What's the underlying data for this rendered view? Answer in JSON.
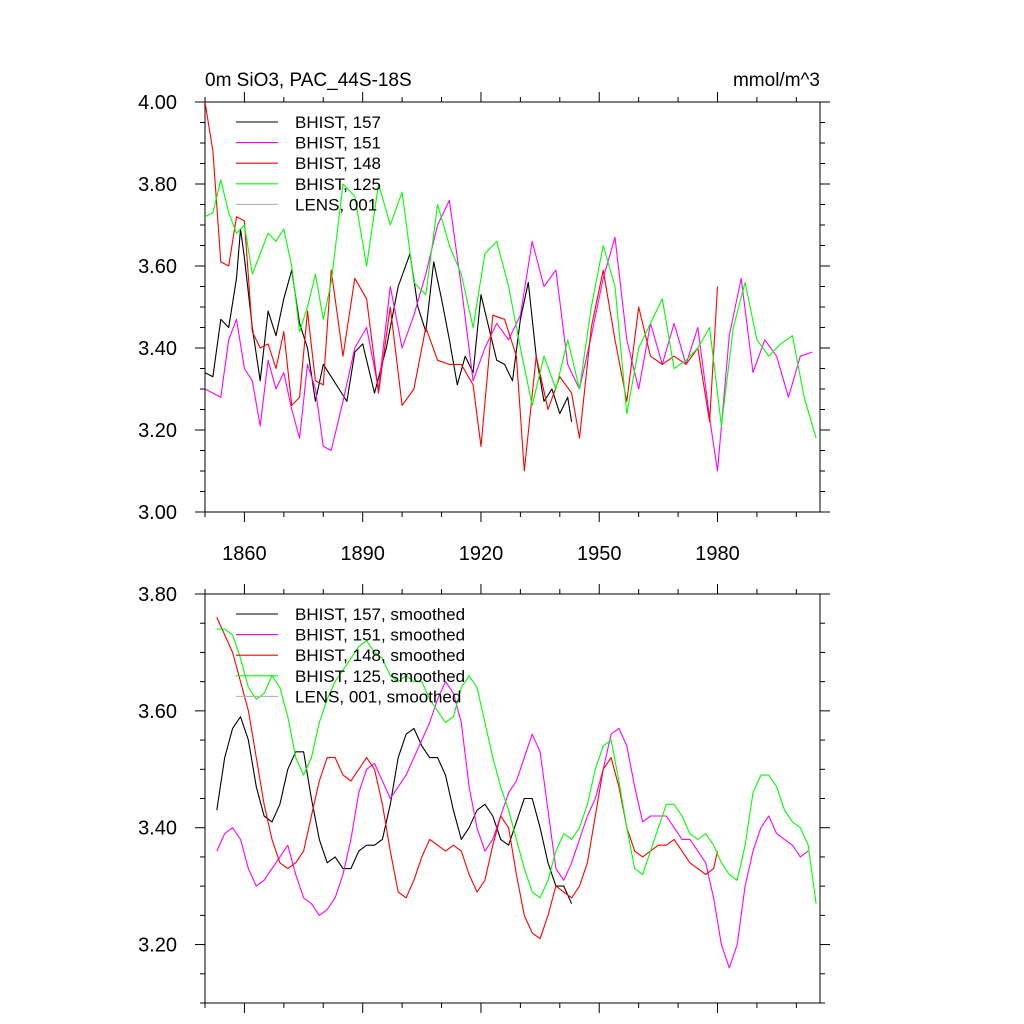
{
  "figure": {
    "title_left": "0m SiO3, PAC_44S-18S",
    "title_right": "mmol/m^3"
  },
  "chart_data": [
    {
      "type": "line",
      "xlim": [
        1850,
        2006
      ],
      "ylim": [
        3.0,
        4.0
      ],
      "x_ticks": [
        1860,
        1890,
        1920,
        1950,
        1980
      ],
      "x_tick_labels": [
        "1860",
        "1890",
        "1920",
        "1950",
        "1980"
      ],
      "y_ticks": [
        3.0,
        3.2,
        3.4,
        3.6,
        3.8,
        4.0
      ],
      "y_tick_labels": [
        "3.00",
        "3.20",
        "3.40",
        "3.60",
        "3.80",
        "4.00"
      ],
      "grid": false,
      "legend_position": "top-left",
      "series": [
        {
          "name": "BHIST, 157",
          "color": "#000000",
          "x": [
            1850,
            1852,
            1854,
            1856,
            1858,
            1859,
            1860,
            1862,
            1864,
            1866,
            1868,
            1870,
            1872,
            1874,
            1876,
            1878,
            1880,
            1882,
            1884,
            1886,
            1888,
            1890,
            1893,
            1896,
            1899,
            1902,
            1904,
            1906,
            1908,
            1910,
            1912,
            1914,
            1916,
            1918,
            1920,
            1922,
            1924,
            1926,
            1928,
            1930,
            1932,
            1934,
            1936,
            1938,
            1940,
            1942,
            1943
          ],
          "y": [
            3.34,
            3.33,
            3.47,
            3.45,
            3.57,
            3.69,
            3.62,
            3.45,
            3.32,
            3.49,
            3.43,
            3.52,
            3.59,
            3.46,
            3.4,
            3.27,
            3.36,
            3.33,
            3.3,
            3.27,
            3.39,
            3.41,
            3.29,
            3.4,
            3.55,
            3.63,
            3.5,
            3.44,
            3.61,
            3.52,
            3.42,
            3.31,
            3.38,
            3.34,
            3.53,
            3.45,
            3.37,
            3.36,
            3.32,
            3.47,
            3.56,
            3.38,
            3.27,
            3.3,
            3.24,
            3.28,
            3.22
          ]
        },
        {
          "name": "BHIST, 151",
          "color": "#ff00ff",
          "x": [
            1850,
            1852,
            1854,
            1856,
            1858,
            1860,
            1862,
            1864,
            1866,
            1868,
            1870,
            1872,
            1874,
            1876,
            1878,
            1880,
            1882,
            1885,
            1888,
            1891,
            1894,
            1897,
            1900,
            1903,
            1906,
            1909,
            1912,
            1915,
            1918,
            1921,
            1924,
            1927,
            1930,
            1933,
            1936,
            1939,
            1942,
            1945,
            1948,
            1951,
            1954,
            1957,
            1960,
            1963,
            1966,
            1969,
            1972,
            1975,
            1978,
            1980,
            1983,
            1986,
            1989,
            1992,
            1995,
            1998,
            2001,
            2004
          ],
          "y": [
            3.3,
            3.29,
            3.28,
            3.42,
            3.47,
            3.35,
            3.32,
            3.21,
            3.37,
            3.3,
            3.34,
            3.25,
            3.18,
            3.36,
            3.3,
            3.16,
            3.15,
            3.27,
            3.4,
            3.45,
            3.3,
            3.55,
            3.4,
            3.48,
            3.58,
            3.7,
            3.76,
            3.55,
            3.32,
            3.4,
            3.46,
            3.42,
            3.48,
            3.66,
            3.55,
            3.59,
            3.36,
            3.3,
            3.43,
            3.57,
            3.67,
            3.42,
            3.3,
            3.46,
            3.36,
            3.46,
            3.36,
            3.45,
            3.23,
            3.1,
            3.43,
            3.57,
            3.34,
            3.42,
            3.38,
            3.28,
            3.38,
            3.39
          ]
        },
        {
          "name": "BHIST, 148",
          "color": "#ff0000",
          "x": [
            1850,
            1852,
            1854,
            1856,
            1858,
            1860,
            1862,
            1864,
            1866,
            1868,
            1870,
            1872,
            1874,
            1876,
            1878,
            1880,
            1882,
            1885,
            1888,
            1891,
            1894,
            1897,
            1900,
            1903,
            1906,
            1909,
            1912,
            1915,
            1918,
            1920,
            1923,
            1926,
            1929,
            1931,
            1934,
            1937,
            1940,
            1943,
            1945,
            1948,
            1951,
            1954,
            1957,
            1960,
            1963,
            1966,
            1969,
            1972,
            1975,
            1978,
            1980
          ],
          "y": [
            4.0,
            3.88,
            3.61,
            3.6,
            3.72,
            3.71,
            3.44,
            3.4,
            3.41,
            3.35,
            3.44,
            3.26,
            3.28,
            3.49,
            3.32,
            3.31,
            3.59,
            3.38,
            3.57,
            3.52,
            3.29,
            3.5,
            3.26,
            3.3,
            3.45,
            3.37,
            3.36,
            3.36,
            3.31,
            3.16,
            3.48,
            3.47,
            3.38,
            3.1,
            3.38,
            3.25,
            3.33,
            3.29,
            3.18,
            3.45,
            3.59,
            3.42,
            3.27,
            3.5,
            3.38,
            3.36,
            3.38,
            3.36,
            3.4,
            3.22,
            3.55
          ]
        },
        {
          "name": "BHIST, 125",
          "color": "#00ff00",
          "x": [
            1850,
            1852,
            1854,
            1856,
            1858,
            1860,
            1862,
            1864,
            1866,
            1868,
            1870,
            1872,
            1874,
            1876,
            1878,
            1880,
            1882,
            1885,
            1888,
            1891,
            1894,
            1897,
            1900,
            1903,
            1906,
            1909,
            1912,
            1915,
            1918,
            1921,
            1924,
            1927,
            1930,
            1933,
            1936,
            1939,
            1942,
            1945,
            1948,
            1951,
            1954,
            1957,
            1960,
            1963,
            1966,
            1969,
            1972,
            1975,
            1978,
            1981,
            1984,
            1987,
            1990,
            1993,
            1996,
            1999,
            2002,
            2005
          ],
          "y": [
            3.72,
            3.73,
            3.81,
            3.73,
            3.68,
            3.7,
            3.58,
            3.63,
            3.68,
            3.66,
            3.69,
            3.6,
            3.44,
            3.5,
            3.58,
            3.47,
            3.56,
            3.8,
            3.77,
            3.6,
            3.8,
            3.7,
            3.78,
            3.56,
            3.53,
            3.75,
            3.65,
            3.58,
            3.45,
            3.63,
            3.66,
            3.55,
            3.4,
            3.26,
            3.38,
            3.3,
            3.42,
            3.3,
            3.5,
            3.65,
            3.55,
            3.24,
            3.4,
            3.46,
            3.52,
            3.35,
            3.37,
            3.4,
            3.45,
            3.21,
            3.45,
            3.56,
            3.42,
            3.38,
            3.41,
            3.43,
            3.28,
            3.18
          ]
        },
        {
          "name": "LENS, 001",
          "color": "#b4b4b4",
          "x": [],
          "y": []
        }
      ]
    },
    {
      "type": "line",
      "xlim": [
        1850,
        2006
      ],
      "ylim": [
        3.1,
        3.8
      ],
      "x_ticks": [
        1860,
        1890,
        1920,
        1950,
        1980
      ],
      "y_ticks": [
        3.2,
        3.4,
        3.6,
        3.8
      ],
      "y_tick_labels": [
        "3.20",
        "3.40",
        "3.60",
        "3.80"
      ],
      "grid": false,
      "legend_position": "top-left",
      "series": [
        {
          "name": "BHIST, 157, smoothed",
          "color": "#000000",
          "x": [
            1853,
            1855,
            1857,
            1859,
            1861,
            1863,
            1865,
            1867,
            1869,
            1871,
            1873,
            1875,
            1877,
            1879,
            1881,
            1883,
            1885,
            1887,
            1889,
            1891,
            1893,
            1895,
            1897,
            1899,
            1901,
            1903,
            1905,
            1907,
            1909,
            1911,
            1913,
            1915,
            1917,
            1919,
            1921,
            1923,
            1925,
            1927,
            1929,
            1931,
            1933,
            1935,
            1937,
            1939,
            1941,
            1943
          ],
          "y": [
            3.43,
            3.52,
            3.57,
            3.59,
            3.55,
            3.47,
            3.42,
            3.41,
            3.44,
            3.5,
            3.53,
            3.53,
            3.45,
            3.38,
            3.34,
            3.35,
            3.33,
            3.33,
            3.36,
            3.37,
            3.37,
            3.38,
            3.44,
            3.52,
            3.56,
            3.57,
            3.54,
            3.52,
            3.52,
            3.49,
            3.43,
            3.38,
            3.4,
            3.43,
            3.44,
            3.42,
            3.38,
            3.37,
            3.41,
            3.45,
            3.45,
            3.4,
            3.34,
            3.3,
            3.3,
            3.27
          ]
        },
        {
          "name": "BHIST, 151, smoothed",
          "color": "#ff00ff",
          "x": [
            1853,
            1855,
            1857,
            1859,
            1861,
            1863,
            1865,
            1867,
            1869,
            1871,
            1873,
            1875,
            1877,
            1879,
            1881,
            1883,
            1885,
            1887,
            1889,
            1891,
            1893,
            1895,
            1897,
            1899,
            1901,
            1903,
            1905,
            1907,
            1909,
            1911,
            1913,
            1915,
            1917,
            1919,
            1921,
            1923,
            1925,
            1927,
            1929,
            1931,
            1933,
            1935,
            1937,
            1939,
            1941,
            1943,
            1945,
            1947,
            1949,
            1951,
            1953,
            1955,
            1957,
            1959,
            1961,
            1963,
            1965,
            1967,
            1969,
            1971,
            1973,
            1975,
            1977,
            1979,
            1981,
            1983,
            1985,
            1987,
            1989,
            1991,
            1993,
            1995,
            1997,
            1999,
            2001,
            2003
          ],
          "y": [
            3.36,
            3.39,
            3.4,
            3.38,
            3.33,
            3.3,
            3.31,
            3.33,
            3.35,
            3.37,
            3.32,
            3.28,
            3.27,
            3.25,
            3.26,
            3.28,
            3.32,
            3.38,
            3.46,
            3.5,
            3.51,
            3.48,
            3.45,
            3.47,
            3.49,
            3.52,
            3.55,
            3.58,
            3.62,
            3.65,
            3.63,
            3.58,
            3.47,
            3.4,
            3.36,
            3.38,
            3.42,
            3.46,
            3.48,
            3.52,
            3.56,
            3.53,
            3.43,
            3.33,
            3.31,
            3.34,
            3.38,
            3.42,
            3.45,
            3.5,
            3.56,
            3.57,
            3.54,
            3.47,
            3.41,
            3.42,
            3.42,
            3.42,
            3.4,
            3.38,
            3.38,
            3.36,
            3.34,
            3.28,
            3.2,
            3.16,
            3.2,
            3.3,
            3.36,
            3.4,
            3.42,
            3.39,
            3.38,
            3.37,
            3.35,
            3.36
          ]
        },
        {
          "name": "BHIST, 148, smoothed",
          "color": "#ff0000",
          "x": [
            1853,
            1855,
            1857,
            1859,
            1861,
            1863,
            1865,
            1867,
            1869,
            1871,
            1873,
            1875,
            1877,
            1879,
            1881,
            1883,
            1885,
            1887,
            1889,
            1891,
            1893,
            1895,
            1897,
            1899,
            1901,
            1903,
            1905,
            1907,
            1909,
            1911,
            1913,
            1915,
            1917,
            1919,
            1921,
            1923,
            1925,
            1927,
            1929,
            1931,
            1933,
            1935,
            1937,
            1939,
            1941,
            1943,
            1945,
            1947,
            1949,
            1951,
            1953,
            1955,
            1957,
            1959,
            1961,
            1963,
            1965,
            1967,
            1969,
            1971,
            1973,
            1975,
            1977,
            1979,
            1980
          ],
          "y": [
            3.76,
            3.73,
            3.7,
            3.65,
            3.6,
            3.52,
            3.44,
            3.38,
            3.34,
            3.33,
            3.34,
            3.36,
            3.42,
            3.48,
            3.52,
            3.52,
            3.49,
            3.48,
            3.5,
            3.52,
            3.5,
            3.44,
            3.36,
            3.29,
            3.28,
            3.31,
            3.35,
            3.38,
            3.37,
            3.36,
            3.37,
            3.36,
            3.32,
            3.29,
            3.31,
            3.37,
            3.42,
            3.4,
            3.32,
            3.25,
            3.22,
            3.21,
            3.25,
            3.3,
            3.29,
            3.28,
            3.3,
            3.34,
            3.42,
            3.5,
            3.52,
            3.47,
            3.4,
            3.36,
            3.35,
            3.36,
            3.37,
            3.37,
            3.38,
            3.36,
            3.34,
            3.33,
            3.32,
            3.33,
            3.36
          ]
        },
        {
          "name": "BHIST, 125, smoothed",
          "color": "#00ff00",
          "x": [
            1853,
            1855,
            1857,
            1859,
            1861,
            1863,
            1865,
            1867,
            1869,
            1871,
            1873,
            1875,
            1877,
            1879,
            1881,
            1883,
            1885,
            1887,
            1889,
            1891,
            1893,
            1895,
            1897,
            1899,
            1901,
            1903,
            1905,
            1907,
            1909,
            1911,
            1913,
            1915,
            1917,
            1919,
            1921,
            1923,
            1925,
            1927,
            1929,
            1931,
            1933,
            1935,
            1937,
            1939,
            1941,
            1943,
            1945,
            1947,
            1949,
            1951,
            1953,
            1955,
            1957,
            1959,
            1961,
            1963,
            1965,
            1967,
            1969,
            1971,
            1973,
            1975,
            1977,
            1979,
            1981,
            1983,
            1985,
            1987,
            1989,
            1991,
            1993,
            1995,
            1997,
            1999,
            2001,
            2003,
            2005
          ],
          "y": [
            3.74,
            3.74,
            3.73,
            3.69,
            3.64,
            3.62,
            3.63,
            3.66,
            3.64,
            3.59,
            3.52,
            3.49,
            3.52,
            3.58,
            3.62,
            3.65,
            3.67,
            3.69,
            3.71,
            3.72,
            3.7,
            3.69,
            3.66,
            3.65,
            3.66,
            3.65,
            3.65,
            3.62,
            3.6,
            3.58,
            3.59,
            3.64,
            3.66,
            3.64,
            3.58,
            3.52,
            3.47,
            3.43,
            3.38,
            3.33,
            3.29,
            3.28,
            3.31,
            3.36,
            3.39,
            3.38,
            3.4,
            3.44,
            3.5,
            3.54,
            3.55,
            3.48,
            3.4,
            3.33,
            3.32,
            3.36,
            3.4,
            3.44,
            3.44,
            3.42,
            3.39,
            3.38,
            3.39,
            3.37,
            3.34,
            3.32,
            3.31,
            3.37,
            3.46,
            3.49,
            3.49,
            3.47,
            3.43,
            3.41,
            3.4,
            3.37,
            3.27
          ]
        },
        {
          "name": "LENS, 001, smoothed",
          "color": "#b4b4b4",
          "x": [],
          "y": []
        }
      ]
    }
  ]
}
